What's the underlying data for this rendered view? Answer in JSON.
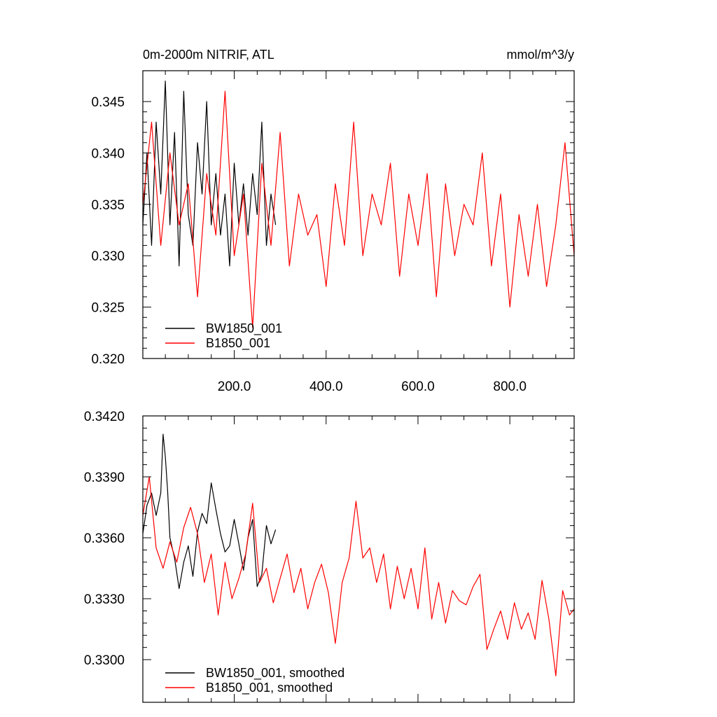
{
  "chart_data": [
    {
      "type": "line",
      "title": "0m-2000m NITRIF, ATL",
      "units": "mmol/m^3/y",
      "xlim": [
        1,
        940
      ],
      "ylim": [
        0.32,
        0.348
      ],
      "xticks": [
        200,
        400,
        600,
        800
      ],
      "xtick_labels": [
        "200.0",
        "400.0",
        "600.0",
        "800.0"
      ],
      "yticks": [
        0.32,
        0.325,
        0.33,
        0.335,
        0.34,
        0.345
      ],
      "ytick_labels": [
        "0.320",
        "0.325",
        "0.330",
        "0.335",
        "0.340",
        "0.345"
      ],
      "grid": false,
      "legend": "bottom-left",
      "series": [
        {
          "name": "BW1850_001",
          "color": "#000000",
          "x": [
            1,
            10,
            20,
            30,
            40,
            50,
            60,
            70,
            80,
            90,
            100,
            110,
            120,
            130,
            140,
            150,
            160,
            170,
            180,
            190,
            200,
            210,
            220,
            230,
            240,
            250,
            260,
            270,
            280,
            290
          ],
          "y": [
            0.333,
            0.34,
            0.331,
            0.343,
            0.336,
            0.347,
            0.333,
            0.342,
            0.329,
            0.346,
            0.334,
            0.331,
            0.341,
            0.336,
            0.345,
            0.333,
            0.338,
            0.332,
            0.336,
            0.329,
            0.339,
            0.333,
            0.337,
            0.332,
            0.338,
            0.334,
            0.343,
            0.331,
            0.336,
            0.333
          ]
        },
        {
          "name": "B1850_001",
          "color": "#ff0000",
          "x": [
            1,
            20,
            40,
            60,
            80,
            100,
            120,
            140,
            160,
            180,
            200,
            220,
            240,
            260,
            280,
            300,
            320,
            340,
            360,
            380,
            400,
            420,
            440,
            460,
            480,
            500,
            520,
            540,
            560,
            580,
            600,
            620,
            640,
            660,
            680,
            700,
            720,
            740,
            760,
            780,
            800,
            820,
            840,
            860,
            880,
            900,
            920,
            940
          ],
          "y": [
            0.335,
            0.343,
            0.331,
            0.34,
            0.333,
            0.337,
            0.326,
            0.338,
            0.332,
            0.346,
            0.33,
            0.336,
            0.323,
            0.339,
            0.331,
            0.342,
            0.329,
            0.336,
            0.332,
            0.334,
            0.327,
            0.337,
            0.331,
            0.343,
            0.33,
            0.336,
            0.333,
            0.339,
            0.328,
            0.336,
            0.331,
            0.338,
            0.326,
            0.337,
            0.33,
            0.335,
            0.333,
            0.34,
            0.329,
            0.336,
            0.325,
            0.334,
            0.328,
            0.335,
            0.327,
            0.333,
            0.341,
            0.33
          ]
        }
      ]
    },
    {
      "type": "line",
      "title": "",
      "xlim": [
        1,
        940
      ],
      "ylim": [
        0.3279,
        0.342
      ],
      "xticks": [
        200,
        400,
        600,
        800
      ],
      "xtick_labels": [],
      "yticks": [
        0.33,
        0.333,
        0.336,
        0.339,
        0.342
      ],
      "ytick_labels": [
        "0.3300",
        "0.3330",
        "0.3360",
        "0.3390",
        "0.3420"
      ],
      "grid": false,
      "legend": "bottom-left",
      "series": [
        {
          "name": "BW1850_001, smoothed",
          "color": "#000000",
          "x": [
            1,
            10,
            20,
            30,
            40,
            45,
            50,
            55,
            60,
            70,
            80,
            90,
            100,
            110,
            120,
            130,
            140,
            150,
            160,
            170,
            180,
            190,
            200,
            210,
            220,
            230,
            240,
            250,
            260,
            270,
            280,
            290
          ],
          "y": [
            0.3362,
            0.3376,
            0.3382,
            0.3371,
            0.3382,
            0.3411,
            0.34,
            0.3383,
            0.336,
            0.335,
            0.3335,
            0.3348,
            0.3356,
            0.3341,
            0.3363,
            0.3372,
            0.3367,
            0.3387,
            0.3374,
            0.3362,
            0.3353,
            0.3356,
            0.3369,
            0.3357,
            0.3344,
            0.336,
            0.3369,
            0.3336,
            0.3342,
            0.3366,
            0.3357,
            0.3364
          ]
        },
        {
          "name": "B1850_001, smoothed",
          "color": "#ff0000",
          "x": [
            1,
            15,
            30,
            45,
            60,
            75,
            90,
            105,
            120,
            135,
            150,
            165,
            180,
            195,
            210,
            225,
            240,
            255,
            270,
            285,
            300,
            315,
            330,
            345,
            360,
            375,
            390,
            405,
            420,
            435,
            450,
            465,
            480,
            495,
            510,
            525,
            540,
            555,
            570,
            585,
            600,
            615,
            630,
            645,
            660,
            675,
            690,
            705,
            720,
            735,
            750,
            765,
            780,
            795,
            810,
            825,
            840,
            855,
            870,
            885,
            900,
            915,
            930,
            940
          ],
          "y": [
            0.3371,
            0.339,
            0.3355,
            0.3345,
            0.3358,
            0.3348,
            0.3365,
            0.3375,
            0.3362,
            0.3338,
            0.3352,
            0.3322,
            0.3348,
            0.333,
            0.334,
            0.3352,
            0.3377,
            0.3338,
            0.3345,
            0.3328,
            0.334,
            0.3352,
            0.3333,
            0.3345,
            0.3325,
            0.3338,
            0.3347,
            0.3333,
            0.3308,
            0.3338,
            0.335,
            0.3378,
            0.335,
            0.3355,
            0.3338,
            0.3352,
            0.3325,
            0.3346,
            0.333,
            0.3345,
            0.3325,
            0.3355,
            0.332,
            0.3338,
            0.3318,
            0.3334,
            0.3329,
            0.3327,
            0.3336,
            0.3342,
            0.3305,
            0.3315,
            0.3324,
            0.331,
            0.3328,
            0.3315,
            0.3323,
            0.331,
            0.3339,
            0.332,
            0.3292,
            0.3334,
            0.3322,
            0.3325
          ]
        }
      ]
    }
  ]
}
